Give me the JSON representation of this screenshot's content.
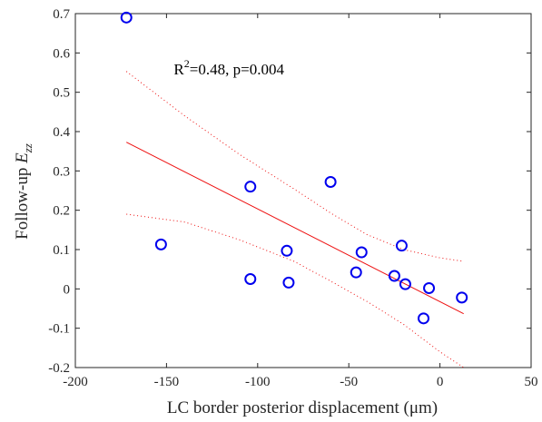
{
  "chart_data": {
    "type": "scatter",
    "xlabel": "LC border posterior displacement (μm)",
    "ylabel_prefix": "Follow-up ",
    "ylabel_symbol": "E",
    "ylabel_subscript": "zz",
    "xlim": [
      -200,
      50
    ],
    "ylim": [
      -0.2,
      0.7
    ],
    "xticks": [
      -200,
      -150,
      -100,
      -50,
      0,
      50
    ],
    "yticks": [
      -0.2,
      -0.1,
      0,
      0.1,
      0.2,
      0.3,
      0.4,
      0.5,
      0.6,
      0.7
    ],
    "xtick_labels": [
      "-200",
      "-150",
      "-100",
      "-50",
      "0",
      "50"
    ],
    "ytick_labels": [
      "-0.2",
      "-0.1",
      "0",
      "0.1",
      "0.2",
      "0.3",
      "0.4",
      "0.5",
      "0.6",
      "0.7"
    ],
    "annotation": {
      "r_prefix": "R",
      "r_exponent": "2",
      "r_rest": "=0.48, p=0.004",
      "x": -146,
      "y": 0.545
    },
    "points": [
      {
        "x": -172,
        "y": 0.69
      },
      {
        "x": -153,
        "y": 0.113
      },
      {
        "x": -104,
        "y": 0.26
      },
      {
        "x": -104,
        "y": 0.025
      },
      {
        "x": -84,
        "y": 0.097
      },
      {
        "x": -83,
        "y": 0.016
      },
      {
        "x": -60,
        "y": 0.272
      },
      {
        "x": -46,
        "y": 0.042
      },
      {
        "x": -43,
        "y": 0.093
      },
      {
        "x": -25,
        "y": 0.033
      },
      {
        "x": -21,
        "y": 0.11
      },
      {
        "x": -19,
        "y": 0.012
      },
      {
        "x": -9,
        "y": -0.075
      },
      {
        "x": -6,
        "y": 0.002
      },
      {
        "x": 12,
        "y": -0.022
      }
    ],
    "fit_line": [
      {
        "x": -172,
        "y": 0.373
      },
      {
        "x": 13,
        "y": -0.063
      }
    ],
    "ci_upper": [
      {
        "x": -172,
        "y": 0.553
      },
      {
        "x": -140,
        "y": 0.44
      },
      {
        "x": -110,
        "y": 0.342
      },
      {
        "x": -80,
        "y": 0.254
      },
      {
        "x": -60,
        "y": 0.193
      },
      {
        "x": -40,
        "y": 0.138
      },
      {
        "x": -20,
        "y": 0.1
      },
      {
        "x": 0,
        "y": 0.079
      },
      {
        "x": 13,
        "y": 0.07
      }
    ],
    "ci_lower": [
      {
        "x": -172,
        "y": 0.19
      },
      {
        "x": -140,
        "y": 0.17
      },
      {
        "x": -110,
        "y": 0.125
      },
      {
        "x": -80,
        "y": 0.07
      },
      {
        "x": -60,
        "y": 0.02
      },
      {
        "x": -40,
        "y": -0.032
      },
      {
        "x": -20,
        "y": -0.09
      },
      {
        "x": 0,
        "y": -0.16
      },
      {
        "x": 13,
        "y": -0.2
      }
    ],
    "colors": {
      "points": "#0000ee",
      "fit": "#ee1111",
      "axes": "#262626"
    }
  }
}
